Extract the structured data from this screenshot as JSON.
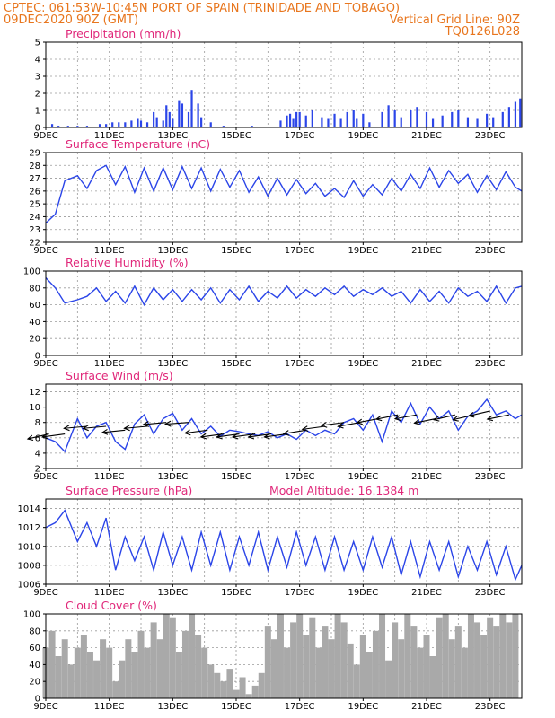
{
  "header": {
    "line1_left": "CPTEC:   061:53W-10:45N   PORT OF SPAIN (TRINIDADE AND TOBAGO)",
    "line2_left": "09DEC2020 90Z (GMT)",
    "line2_right": "Vertical Grid Line: 90Z",
    "line3_right": "TQ0126L028"
  },
  "colors": {
    "header": "#e8761e",
    "panel_title": "#e0287a",
    "series": "#2b45e8",
    "bars_precip": "#2b45e8",
    "bars_cloud": "#a9a9a9",
    "wind_arrows": "#000000"
  },
  "x_axis": {
    "start_day": 9,
    "end_day": 24,
    "tick_labels": [
      "9DEC",
      "11DEC",
      "13DEC",
      "15DEC",
      "17DEC",
      "19DEC",
      "21DEC",
      "23DEC"
    ],
    "tick_days": [
      9,
      11,
      13,
      15,
      17,
      19,
      21,
      23
    ],
    "vertical_grid_days": [
      10,
      11,
      12,
      13,
      14,
      15,
      16,
      17,
      18,
      19,
      20,
      21,
      22,
      23
    ]
  },
  "chart_data": [
    {
      "id": "precipitation",
      "type": "bar",
      "title": "Precipitation (mm/h)",
      "ylim": [
        0,
        5
      ],
      "yticks": [
        0,
        1,
        2,
        3,
        4,
        5
      ],
      "grid": true,
      "x_days": [
        9.2,
        9.4,
        9.7,
        10.0,
        10.3,
        10.7,
        10.9,
        11.1,
        11.3,
        11.5,
        11.7,
        11.9,
        12.0,
        12.2,
        12.4,
        12.5,
        12.7,
        12.8,
        12.9,
        13.0,
        13.2,
        13.3,
        13.5,
        13.6,
        13.8,
        13.9,
        14.2,
        14.6,
        15.5,
        16.4,
        16.6,
        16.7,
        16.8,
        16.9,
        17.0,
        17.2,
        17.4,
        17.7,
        17.9,
        18.1,
        18.3,
        18.5,
        18.7,
        18.8,
        19.0,
        19.2,
        19.6,
        19.8,
        20.0,
        20.2,
        20.5,
        20.7,
        21.0,
        21.2,
        21.5,
        21.8,
        22.0,
        22.3,
        22.6,
        22.9,
        23.1,
        23.4,
        23.6,
        23.8,
        23.95
      ],
      "values": [
        0.2,
        0.1,
        0.1,
        0.1,
        0.1,
        0.2,
        0.2,
        0.3,
        0.3,
        0.3,
        0.4,
        0.5,
        0.4,
        0.3,
        0.9,
        0.6,
        0.4,
        1.3,
        0.9,
        0.5,
        1.6,
        1.4,
        0.9,
        2.2,
        1.4,
        0.6,
        0.3,
        0.1,
        0.1,
        0.4,
        0.7,
        0.8,
        0.5,
        0.9,
        0.9,
        0.7,
        1.0,
        0.6,
        0.5,
        0.8,
        0.5,
        0.9,
        1.0,
        0.5,
        0.8,
        0.3,
        0.9,
        1.3,
        1.0,
        0.6,
        1.0,
        1.2,
        0.9,
        0.5,
        0.7,
        0.9,
        1.0,
        0.6,
        0.5,
        0.8,
        0.6,
        0.9,
        1.2,
        1.5,
        1.7
      ]
    },
    {
      "id": "temperature",
      "type": "line",
      "title": "Surface Temperature (nC)",
      "ylim": [
        22,
        29
      ],
      "yticks": [
        22,
        23,
        24,
        25,
        26,
        27,
        28,
        29
      ],
      "grid": true,
      "x_days": [
        9.0,
        9.3,
        9.6,
        10.0,
        10.3,
        10.6,
        10.9,
        11.2,
        11.5,
        11.8,
        12.1,
        12.4,
        12.7,
        13.0,
        13.3,
        13.6,
        13.9,
        14.2,
        14.5,
        14.8,
        15.1,
        15.4,
        15.7,
        16.0,
        16.3,
        16.6,
        16.9,
        17.2,
        17.5,
        17.8,
        18.1,
        18.4,
        18.7,
        19.0,
        19.3,
        19.6,
        19.9,
        20.2,
        20.5,
        20.8,
        21.1,
        21.4,
        21.7,
        22.0,
        22.3,
        22.6,
        22.9,
        23.2,
        23.5,
        23.8,
        24.0
      ],
      "values": [
        23.5,
        24.2,
        26.8,
        27.2,
        26.2,
        27.6,
        28.0,
        26.5,
        27.9,
        25.9,
        27.8,
        26.0,
        27.8,
        26.1,
        27.9,
        26.2,
        27.8,
        26.0,
        27.7,
        26.3,
        27.6,
        25.9,
        27.1,
        25.6,
        27.0,
        25.7,
        26.9,
        25.8,
        26.6,
        25.6,
        26.2,
        25.5,
        26.8,
        25.6,
        26.5,
        25.7,
        27.0,
        26.0,
        27.3,
        26.2,
        27.8,
        26.3,
        27.6,
        26.6,
        27.3,
        25.9,
        27.2,
        26.1,
        27.5,
        26.3,
        26.0
      ]
    },
    {
      "id": "humidity",
      "type": "line",
      "title": "Relative Humidity (%)",
      "ylim": [
        0,
        100
      ],
      "yticks": [
        0,
        20,
        40,
        60,
        80,
        100
      ],
      "grid": true,
      "x_days": [
        9.0,
        9.3,
        9.6,
        10.0,
        10.3,
        10.6,
        10.9,
        11.2,
        11.5,
        11.8,
        12.1,
        12.4,
        12.7,
        13.0,
        13.3,
        13.6,
        13.9,
        14.2,
        14.5,
        14.8,
        15.1,
        15.4,
        15.7,
        16.0,
        16.3,
        16.6,
        16.9,
        17.2,
        17.5,
        17.8,
        18.1,
        18.4,
        18.7,
        19.0,
        19.3,
        19.6,
        19.9,
        20.2,
        20.5,
        20.8,
        21.1,
        21.4,
        21.7,
        22.0,
        22.3,
        22.6,
        22.9,
        23.2,
        23.5,
        23.8,
        24.0
      ],
      "values": [
        92,
        80,
        62,
        66,
        70,
        80,
        64,
        76,
        62,
        82,
        60,
        80,
        66,
        78,
        64,
        78,
        66,
        80,
        62,
        78,
        66,
        82,
        64,
        76,
        68,
        82,
        68,
        78,
        70,
        80,
        72,
        82,
        70,
        78,
        72,
        80,
        70,
        76,
        62,
        78,
        64,
        76,
        62,
        80,
        70,
        76,
        64,
        82,
        62,
        80,
        82
      ]
    },
    {
      "id": "wind",
      "type": "line",
      "title": "Surface Wind (m/s)",
      "ylim": [
        2,
        13
      ],
      "yticks": [
        2,
        4,
        6,
        8,
        10,
        12
      ],
      "grid": true,
      "x_days": [
        9.0,
        9.3,
        9.6,
        10.0,
        10.3,
        10.6,
        10.9,
        11.2,
        11.5,
        11.8,
        12.1,
        12.4,
        12.7,
        13.0,
        13.3,
        13.6,
        13.9,
        14.2,
        14.5,
        14.8,
        15.1,
        15.4,
        15.7,
        16.0,
        16.3,
        16.6,
        16.9,
        17.2,
        17.5,
        17.8,
        18.1,
        18.4,
        18.7,
        19.0,
        19.3,
        19.6,
        19.9,
        20.2,
        20.5,
        20.8,
        21.1,
        21.4,
        21.7,
        22.0,
        22.3,
        22.6,
        22.9,
        23.2,
        23.5,
        23.8,
        24.0
      ],
      "values": [
        6.0,
        5.5,
        4.2,
        8.5,
        6.0,
        7.5,
        8.0,
        5.5,
        4.5,
        7.8,
        9.0,
        6.5,
        8.5,
        9.2,
        7.0,
        8.5,
        6.5,
        7.5,
        6.2,
        7.0,
        6.8,
        6.5,
        6.3,
        6.8,
        6.0,
        6.5,
        5.8,
        7.0,
        6.3,
        7.0,
        6.5,
        8.0,
        8.5,
        7.0,
        9.0,
        5.5,
        9.5,
        8.0,
        10.5,
        7.8,
        10.0,
        8.5,
        9.5,
        7.0,
        8.8,
        9.5,
        11.0,
        9.0,
        9.5,
        8.5,
        9.0
      ],
      "arrow_days": [
        9.1,
        9.6,
        10.3,
        10.9,
        11.5,
        12.2,
        12.8,
        13.5,
        14.1,
        14.6,
        15.1,
        15.6,
        16.1,
        16.6,
        17.2,
        17.8,
        18.4,
        18.9,
        19.5,
        20.1,
        20.7,
        21.3,
        21.9,
        22.5,
        23.0,
        23.6
      ],
      "arrow_dir_deg": [
        25,
        15,
        10,
        10,
        12,
        10,
        10,
        8,
        15,
        15,
        15,
        15,
        15,
        15,
        18,
        15,
        15,
        20,
        20,
        22,
        20,
        22,
        25,
        25,
        25,
        22
      ],
      "arrow_speed": [
        6.5,
        6.5,
        7.5,
        7.5,
        7.0,
        7.5,
        8.0,
        8.0,
        7.0,
        6.5,
        6.5,
        6.5,
        6.5,
        6.5,
        7.0,
        7.5,
        8.0,
        8.0,
        8.5,
        9.0,
        9.0,
        8.5,
        9.0,
        9.0,
        9.5,
        9.0
      ]
    },
    {
      "id": "pressure",
      "type": "line",
      "title": "Surface Pressure (hPa)",
      "annotation": "Model Altitude: 16.1384 m",
      "ylim": [
        1006,
        1015
      ],
      "yticks": [
        1006,
        1008,
        1010,
        1012,
        1014
      ],
      "grid": true,
      "x_days": [
        9.0,
        9.3,
        9.6,
        10.0,
        10.3,
        10.6,
        10.9,
        11.2,
        11.5,
        11.8,
        12.1,
        12.4,
        12.7,
        13.0,
        13.3,
        13.6,
        13.9,
        14.2,
        14.5,
        14.8,
        15.1,
        15.4,
        15.7,
        16.0,
        16.3,
        16.6,
        16.9,
        17.2,
        17.5,
        17.8,
        18.1,
        18.4,
        18.7,
        19.0,
        19.3,
        19.6,
        19.9,
        20.2,
        20.5,
        20.8,
        21.1,
        21.4,
        21.7,
        22.0,
        22.3,
        22.6,
        22.9,
        23.2,
        23.5,
        23.8,
        24.0
      ],
      "values": [
        1012.0,
        1012.5,
        1013.8,
        1010.5,
        1012.5,
        1010.0,
        1013.0,
        1007.5,
        1011.0,
        1008.5,
        1011.0,
        1007.5,
        1011.5,
        1008.0,
        1011.0,
        1007.5,
        1011.5,
        1008.0,
        1011.5,
        1007.5,
        1011.0,
        1008.0,
        1011.5,
        1007.5,
        1011.0,
        1007.8,
        1011.5,
        1008.0,
        1011.0,
        1007.5,
        1011.0,
        1007.5,
        1010.5,
        1007.5,
        1011.0,
        1007.8,
        1011.0,
        1007.0,
        1010.5,
        1006.8,
        1010.5,
        1007.5,
        1010.5,
        1006.8,
        1010.0,
        1007.5,
        1010.5,
        1007.0,
        1010.0,
        1006.5,
        1008.0
      ]
    },
    {
      "id": "cloud",
      "type": "bar",
      "title": "Cloud Cover (%)",
      "ylim": [
        0,
        100
      ],
      "yticks": [
        0,
        20,
        40,
        60,
        80,
        100
      ],
      "grid": true,
      "x_days": [
        9.0,
        9.2,
        9.4,
        9.6,
        9.8,
        10.0,
        10.2,
        10.4,
        10.6,
        10.8,
        11.0,
        11.2,
        11.4,
        11.6,
        11.8,
        12.0,
        12.2,
        12.4,
        12.6,
        12.8,
        13.0,
        13.2,
        13.4,
        13.6,
        13.8,
        14.0,
        14.2,
        14.4,
        14.6,
        14.8,
        15.0,
        15.2,
        15.4,
        15.6,
        15.8,
        16.0,
        16.2,
        16.4,
        16.6,
        16.8,
        17.0,
        17.2,
        17.4,
        17.6,
        17.8,
        18.0,
        18.2,
        18.4,
        18.6,
        18.8,
        19.0,
        19.2,
        19.4,
        19.6,
        19.8,
        20.0,
        20.2,
        20.4,
        20.6,
        20.8,
        21.0,
        21.2,
        21.4,
        21.6,
        21.8,
        22.0,
        22.2,
        22.4,
        22.6,
        22.8,
        23.0,
        23.2,
        23.4,
        23.6,
        23.8
      ],
      "values": [
        60,
        80,
        50,
        70,
        40,
        60,
        75,
        55,
        45,
        70,
        60,
        20,
        45,
        70,
        55,
        80,
        60,
        90,
        70,
        100,
        95,
        55,
        80,
        100,
        75,
        60,
        40,
        30,
        20,
        35,
        10,
        25,
        5,
        15,
        30,
        85,
        70,
        100,
        60,
        90,
        100,
        75,
        95,
        60,
        85,
        70,
        100,
        90,
        65,
        40,
        75,
        55,
        80,
        100,
        45,
        90,
        70,
        100,
        85,
        60,
        75,
        50,
        95,
        100,
        70,
        85,
        60,
        100,
        90,
        75,
        95,
        85,
        100,
        90,
        100
      ]
    }
  ]
}
